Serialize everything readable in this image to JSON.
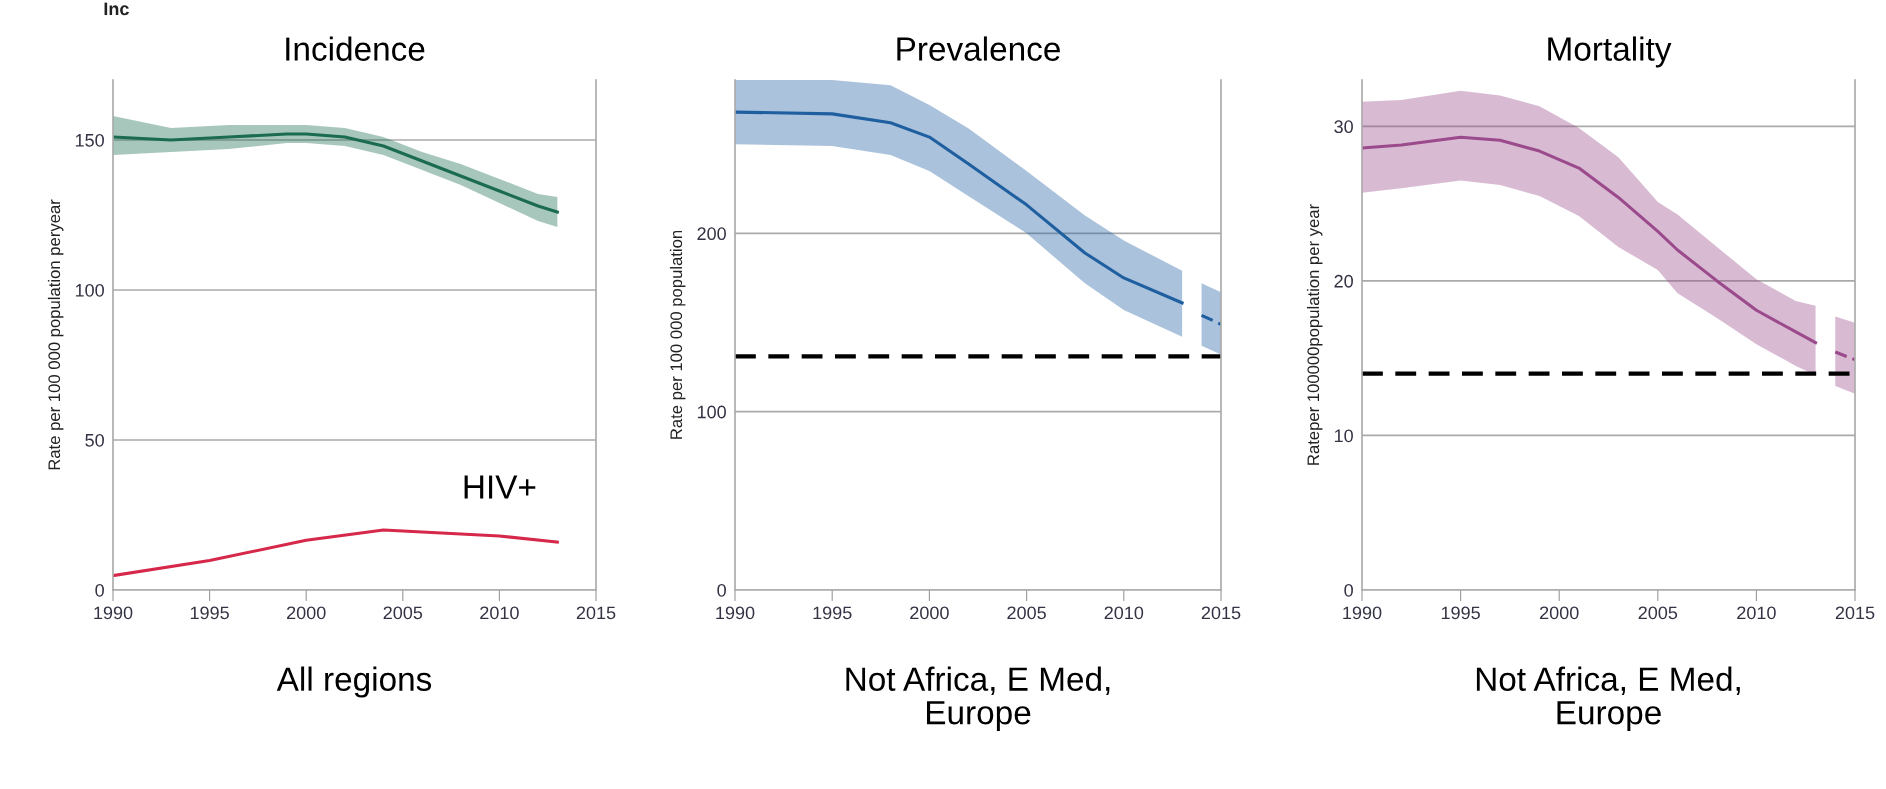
{
  "chart_data": [
    {
      "type": "line",
      "title": "Incidence",
      "ylabel": "Rate per 100 000 population peryear",
      "xlim": [
        1990,
        2015
      ],
      "xticks": [
        1990,
        1995,
        2000,
        2005,
        2010,
        2015
      ],
      "ylim": [
        0,
        170
      ],
      "yticks": [
        0,
        50,
        100,
        150
      ],
      "grid": "y",
      "legend": false,
      "annotations": [
        "Inc",
        "All regions"
      ],
      "series": [
        {
          "color": "#1a6b50",
          "line_style": "solid",
          "x": [
            1990,
            1993,
            1996,
            1999,
            2000,
            2002,
            2004,
            2006,
            2008,
            2010,
            2012,
            2013
          ],
          "values": [
            151,
            150,
            151,
            152,
            152,
            151,
            148,
            143,
            138,
            133,
            128,
            126
          ],
          "lower": [
            145,
            146,
            147,
            149,
            149,
            148,
            145,
            140,
            135,
            129,
            123,
            121
          ],
          "upper": [
            158,
            154,
            155,
            155,
            155,
            154,
            151,
            146,
            142,
            137,
            132,
            131
          ]
        },
        {
          "name": "HIV+",
          "color": "#d6284a",
          "line_style": "solid",
          "x": [
            1990,
            1995,
            2000,
            2004,
            2007,
            2010,
            2013
          ],
          "values": [
            4.8,
            9.8,
            16.6,
            20,
            19,
            18,
            16
          ]
        }
      ]
    },
    {
      "type": "line",
      "title": "Prevalence",
      "ylabel": "Rate per 100 000 population",
      "xlim": [
        1990,
        2015
      ],
      "xticks": [
        1990,
        1995,
        2000,
        2005,
        2010,
        2015
      ],
      "ylim": [
        0,
        286
      ],
      "yticks": [
        0,
        100,
        200
      ],
      "grid": "y",
      "legend": false,
      "annotations": [
        "Not Africa, E Med,\nEurope"
      ],
      "ref_lines": [
        {
          "axis": "y",
          "value": 131,
          "color": "#000000",
          "line_style": "dashed"
        }
      ],
      "series": [
        {
          "color": "#1f5fa0",
          "line_style": "solid",
          "x": [
            1990,
            1995,
            1998,
            2000,
            2002,
            2005,
            2008,
            2010,
            2013
          ],
          "values": [
            268,
            267,
            262,
            254,
            239,
            216,
            189,
            175,
            161
          ],
          "lower": [
            250,
            249,
            244,
            235,
            221,
            200,
            172,
            157,
            142
          ],
          "upper": [
            286,
            286,
            283,
            272,
            259,
            235,
            210,
            196,
            179
          ]
        },
        {
          "color": "#1f5fa0",
          "line_style": "dashed",
          "x": [
            2014,
            2015
          ],
          "values": [
            154,
            149
          ],
          "lower": [
            137,
            132
          ],
          "upper": [
            172,
            167
          ]
        }
      ]
    },
    {
      "type": "line",
      "title": "Mortality",
      "ylabel": "Rateper 100000population per year",
      "xlim": [
        1990,
        2015
      ],
      "xticks": [
        1990,
        1995,
        2000,
        2005,
        2010,
        2015
      ],
      "ylim": [
        0,
        33
      ],
      "yticks": [
        0,
        10,
        20,
        30
      ],
      "grid": "y",
      "legend": false,
      "annotations": [
        "Not Africa, E Med,\nEurope"
      ],
      "ref_lines": [
        {
          "axis": "y",
          "value": 14,
          "color": "#000000",
          "line_style": "dashed"
        }
      ],
      "series": [
        {
          "color": "#9b4a8c",
          "line_style": "solid",
          "x": [
            1990,
            1992,
            1995,
            1997,
            1999,
            2001,
            2003,
            2005,
            2006,
            2008,
            2010,
            2012,
            2013
          ],
          "values": [
            28.6,
            28.8,
            29.3,
            29.1,
            28.4,
            27.3,
            25.4,
            23.2,
            22.0,
            20.0,
            18.1,
            16.7,
            16.0
          ],
          "lower": [
            25.7,
            26.0,
            26.5,
            26.2,
            25.5,
            24.2,
            22.2,
            20.7,
            19.2,
            17.6,
            15.9,
            14.5,
            13.9
          ],
          "upper": [
            31.6,
            31.7,
            32.3,
            32.0,
            31.3,
            29.9,
            28.0,
            25.1,
            24.3,
            22.2,
            20.1,
            18.7,
            18.4
          ]
        },
        {
          "color": "#9b4a8c",
          "line_style": "dashed",
          "x": [
            2014,
            2015
          ],
          "values": [
            15.4,
            14.9
          ],
          "lower": [
            13.2,
            12.7
          ],
          "upper": [
            17.7,
            17.3
          ]
        }
      ]
    }
  ]
}
